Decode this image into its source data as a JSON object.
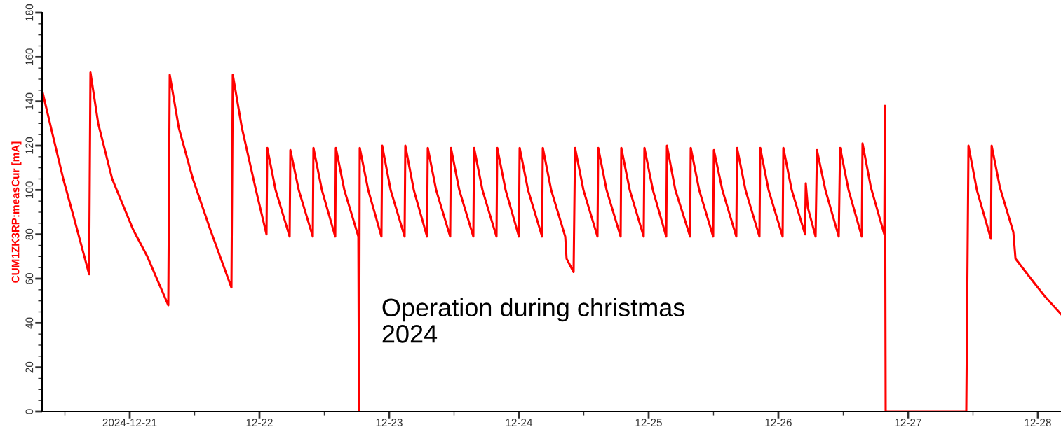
{
  "chart_data": {
    "type": "line",
    "ylabel": "CUM1ZK3RP:measCur [mA]",
    "annotations": [
      "Operation during christmas\n2024"
    ],
    "xlim": [
      "2024-12-20T07:47",
      "2024-12-28T04:17"
    ],
    "xticks": [
      {
        "value": "2024-12-20T12:00",
        "label": null
      },
      {
        "value": "2024-12-21",
        "label": "2024-12-21"
      },
      {
        "value": "2024-12-21T12:00",
        "label": null
      },
      {
        "value": "2024-12-22",
        "label": "12-22"
      },
      {
        "value": "2024-12-22T12:00",
        "label": null
      },
      {
        "value": "2024-12-23",
        "label": "12-23"
      },
      {
        "value": "2024-12-23T12:00",
        "label": null
      },
      {
        "value": "2024-12-24",
        "label": "12-24"
      },
      {
        "value": "2024-12-24T12:00",
        "label": null
      },
      {
        "value": "2024-12-25",
        "label": "12-25"
      },
      {
        "value": "2024-12-25T12:00",
        "label": null
      },
      {
        "value": "2024-12-26",
        "label": "12-26"
      },
      {
        "value": "2024-12-26T12:00",
        "label": null
      },
      {
        "value": "2024-12-27",
        "label": "12-27"
      },
      {
        "value": "2024-12-27T12:00",
        "label": null
      },
      {
        "value": "2024-12-28",
        "label": "12-28"
      }
    ],
    "ylim": [
      0,
      180
    ],
    "yticks": [
      0,
      {
        "value": 5,
        "label": null
      },
      {
        "value": 10,
        "label": null
      },
      {
        "value": 15,
        "label": null
      },
      20,
      {
        "value": 25,
        "label": null
      },
      {
        "value": 30,
        "label": null
      },
      {
        "value": 35,
        "label": null
      },
      40,
      {
        "value": 45,
        "label": null
      },
      {
        "value": 50,
        "label": null
      },
      {
        "value": 55,
        "label": null
      },
      60,
      {
        "value": 65,
        "label": null
      },
      {
        "value": 70,
        "label": null
      },
      {
        "value": 75,
        "label": null
      },
      80,
      {
        "value": 85,
        "label": null
      },
      {
        "value": 90,
        "label": null
      },
      {
        "value": 95,
        "label": null
      },
      100,
      {
        "value": 105,
        "label": null
      },
      {
        "value": 110,
        "label": null
      },
      {
        "value": 115,
        "label": null
      },
      120,
      {
        "value": 125,
        "label": null
      },
      {
        "value": 130,
        "label": null
      },
      {
        "value": 135,
        "label": null
      },
      140,
      {
        "value": 145,
        "label": null
      },
      {
        "value": 150,
        "label": null
      },
      {
        "value": 155,
        "label": null
      },
      160,
      {
        "value": 165,
        "label": null
      },
      {
        "value": 170,
        "label": null
      },
      {
        "value": 175,
        "label": null
      },
      180
    ],
    "grid": false,
    "marker": "none",
    "line_style": "solid",
    "series": [
      {
        "color": "#ff0000",
        "x": [
          "2024-12-20T07:47",
          "2024-12-20T09:44",
          "2024-12-20T11:42",
          "2024-12-20T13:37",
          "2024-12-20T16:29",
          "2024-12-20T16:44",
          "2024-12-20T18:10",
          "2024-12-20T20:45",
          "2024-12-21T00:39",
          "2024-12-21T03:15",
          "2024-12-21T07:08",
          "2024-12-21T07:24",
          "2024-12-21T09:05",
          "2024-12-21T11:41",
          "2024-12-21T14:55",
          "2024-12-21T18:49",
          "2024-12-21T19:04",
          "2024-12-21T20:45",
          "2024-12-21T23:21",
          "2024-12-22T01:18",
          "2024-12-22T01:26",
          "2024-12-22T02:59",
          "2024-12-22T05:35",
          "2024-12-22T05:43",
          "2024-12-22T07:16",
          "2024-12-22T09:52",
          "2024-12-22T09:59",
          "2024-12-22T11:33",
          "2024-12-22T14:01",
          "2024-12-22T14:08",
          "2024-12-22T15:42",
          "2024-12-22T18:18",
          "2024-12-22T18:25",
          "2024-12-22T18:33",
          "2024-12-22T20:07",
          "2024-12-22T22:34",
          "2024-12-22T22:42",
          "2024-12-23T00:16",
          "2024-12-23T02:51",
          "2024-12-23T02:59",
          "2024-12-23T04:33",
          "2024-12-23T07:00",
          "2024-12-23T07:08",
          "2024-12-23T08:41",
          "2024-12-23T11:17",
          "2024-12-23T11:25",
          "2024-12-23T12:58",
          "2024-12-23T15:34",
          "2024-12-23T15:42",
          "2024-12-23T17:15",
          "2024-12-23T19:51",
          "2024-12-23T19:59",
          "2024-12-23T21:32",
          "2024-12-24T00:00",
          "2024-12-24T00:08",
          "2024-12-24T01:41",
          "2024-12-24T04:17",
          "2024-12-24T04:25",
          "2024-12-24T05:58",
          "2024-12-24T08:34",
          "2024-12-24T08:49",
          "2024-12-24T10:07",
          "2024-12-24T10:23",
          "2024-12-24T11:56",
          "2024-12-24T14:32",
          "2024-12-24T14:40",
          "2024-12-24T16:13",
          "2024-12-24T18:49",
          "2024-12-24T18:56",
          "2024-12-24T20:30",
          "2024-12-24T23:05",
          "2024-12-24T23:13",
          "2024-12-25T00:47",
          "2024-12-25T03:15",
          "2024-12-25T03:23",
          "2024-12-25T04:56",
          "2024-12-25T07:40",
          "2024-12-25T07:47",
          "2024-12-25T09:21",
          "2024-12-25T11:56",
          "2024-12-25T12:04",
          "2024-12-25T13:38",
          "2024-12-25T16:13",
          "2024-12-25T16:21",
          "2024-12-25T17:55",
          "2024-12-25T20:30",
          "2024-12-25T20:38",
          "2024-12-25T22:11",
          "2024-12-26T00:47",
          "2024-12-26T00:55",
          "2024-12-26T02:28",
          "2024-12-26T04:56",
          "2024-12-26T05:04",
          "2024-12-26T05:27",
          "2024-12-26T06:53",
          "2024-12-26T07:08",
          "2024-12-26T08:42",
          "2024-12-26T11:10",
          "2024-12-26T11:25",
          "2024-12-26T12:59",
          "2024-12-26T15:26",
          "2024-12-26T15:34",
          "2024-12-26T17:08",
          "2024-12-26T19:36",
          "2024-12-26T19:43",
          "2024-12-26T19:51",
          "2024-12-27T10:46",
          "2024-12-27T11:10",
          "2024-12-27T12:43",
          "2024-12-27T15:19",
          "2024-12-27T15:27",
          "2024-12-27T17:00",
          "2024-12-27T19:28",
          "2024-12-27T19:52",
          "2024-12-27T22:43",
          "2024-12-28T01:18",
          "2024-12-28T04:17"
        ],
        "values": [
          145,
          125,
          105,
          88,
          62,
          153,
          130,
          105,
          82,
          70,
          48,
          152,
          128,
          105,
          82,
          56,
          152,
          128,
          100,
          80,
          119,
          100,
          79,
          118,
          100,
          79,
          119,
          100,
          79,
          119,
          100,
          79,
          0,
          119,
          100,
          79,
          120,
          100,
          79,
          120,
          100,
          79,
          119,
          100,
          79,
          119,
          100,
          79,
          119,
          100,
          79,
          119,
          100,
          79,
          119,
          100,
          79,
          119,
          100,
          79,
          69,
          63,
          119,
          100,
          79,
          119,
          100,
          79,
          119,
          100,
          79,
          119,
          100,
          79,
          120,
          100,
          79,
          119,
          100,
          79,
          118,
          100,
          79,
          119,
          100,
          79,
          119,
          100,
          79,
          119,
          100,
          80,
          103,
          92,
          79,
          118,
          100,
          79,
          119,
          100,
          79,
          121,
          101,
          80,
          138,
          0,
          0,
          120,
          100,
          78,
          120,
          101,
          81,
          69,
          60,
          52,
          44
        ]
      }
    ]
  }
}
